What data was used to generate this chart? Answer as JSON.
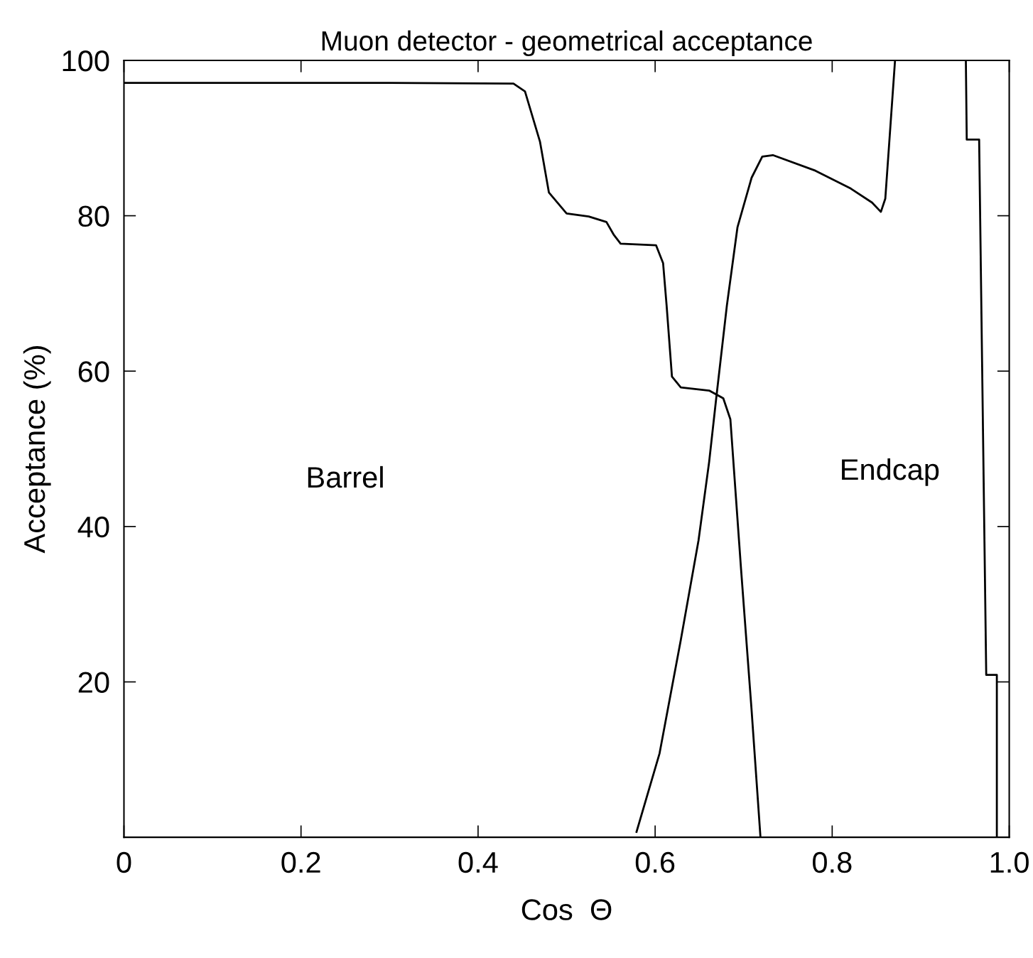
{
  "chart_data": {
    "type": "line",
    "title": "Muon detector - geometrical acceptance",
    "xlabel": "Cos  Θ",
    "ylabel": "Acceptance (%)",
    "xlim": [
      0,
      1
    ],
    "xticks": [
      0,
      0.2,
      0.4,
      0.6,
      0.8,
      {
        "value": 1.0,
        "label": "1.0"
      }
    ],
    "ylim": [
      0,
      100
    ],
    "yticks": [
      {
        "value": 0,
        "label": null
      },
      20,
      40,
      60,
      80,
      100
    ],
    "grid": false,
    "legend": false,
    "marker": "none",
    "line_style": "solid",
    "series": [
      {
        "color": "#000000",
        "x": [
          0,
          0.3,
          0.44,
          0.453,
          0.47,
          0.48,
          0.5,
          0.525,
          0.545,
          0.553,
          0.561,
          0.601,
          0.609,
          0.613,
          0.619,
          0.629,
          0.661,
          0.677,
          0.685,
          0.697,
          0.709,
          0.719
        ],
        "values": [
          97.1,
          97.1,
          97.0,
          96.0,
          89.5,
          83,
          80.3,
          79.9,
          79.2,
          77.6,
          76.4,
          76.2,
          73.9,
          68.4,
          59.3,
          57.9,
          57.5,
          56.5,
          53.8,
          34.6,
          16.3,
          0
        ]
      },
      {
        "color": "#000000",
        "x": [
          0.579,
          0.605,
          0.629,
          0.649,
          0.661,
          0.669,
          0.681,
          0.693,
          0.709,
          0.721,
          0.733,
          0.781,
          0.821,
          0.845,
          0.855,
          0.86,
          0.871,
          0.91,
          0.951,
          0.952,
          0.966,
          0.974,
          0.986,
          0.986
        ],
        "values": [
          0.7,
          10.8,
          25.4,
          38.2,
          48.3,
          56.5,
          68.4,
          78.5,
          84.9,
          87.6,
          87.8,
          85.8,
          83.5,
          81.7,
          80.5,
          82.2,
          100,
          null,
          100,
          89.8,
          89.8,
          20.9,
          20.9,
          0
        ]
      }
    ],
    "annotations": [
      "Barrel",
      "Endcap"
    ]
  }
}
